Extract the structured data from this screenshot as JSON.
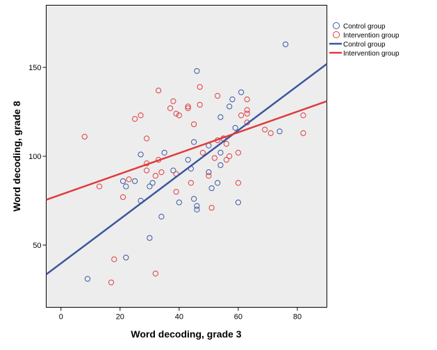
{
  "chart_data": {
    "type": "scatter",
    "title": "",
    "xlabel": "Word decoding, grade 3",
    "ylabel": "Word decoding, grade 8",
    "xlim": [
      -5,
      90
    ],
    "ylim": [
      15,
      185
    ],
    "xticks": [
      0,
      20,
      40,
      60,
      80
    ],
    "yticks": [
      50,
      100,
      150
    ],
    "grid": false,
    "legend_position": "right",
    "plot_background": "#ededed",
    "series": [
      {
        "name": "Control group",
        "marker": "open-circle",
        "color": "#3a55a0",
        "points": [
          [
            9,
            31
          ],
          [
            22,
            43
          ],
          [
            30,
            54
          ],
          [
            34,
            66
          ],
          [
            21,
            86
          ],
          [
            22,
            83
          ],
          [
            25,
            86
          ],
          [
            27,
            75
          ],
          [
            27,
            101
          ],
          [
            30,
            83
          ],
          [
            31,
            85
          ],
          [
            35,
            102
          ],
          [
            38,
            92
          ],
          [
            40,
            74
          ],
          [
            43,
            98
          ],
          [
            44,
            93
          ],
          [
            45,
            108
          ],
          [
            45,
            76
          ],
          [
            46,
            72
          ],
          [
            46,
            70
          ],
          [
            46,
            148
          ],
          [
            50,
            106
          ],
          [
            50,
            91
          ],
          [
            51,
            82
          ],
          [
            53,
            85
          ],
          [
            54,
            95
          ],
          [
            54,
            102
          ],
          [
            54,
            122
          ],
          [
            55,
            110
          ],
          [
            57,
            128
          ],
          [
            58,
            132
          ],
          [
            59,
            116
          ],
          [
            61,
            136
          ],
          [
            60,
            74
          ],
          [
            74,
            114
          ],
          [
            76,
            163
          ]
        ]
      },
      {
        "name": "Intervention group",
        "marker": "open-circle",
        "color": "#e03a3a",
        "points": [
          [
            8,
            111
          ],
          [
            13,
            83
          ],
          [
            17,
            29
          ],
          [
            18,
            42
          ],
          [
            21,
            77
          ],
          [
            23,
            87
          ],
          [
            25,
            121
          ],
          [
            27,
            123
          ],
          [
            29,
            92
          ],
          [
            29,
            96
          ],
          [
            29,
            110
          ],
          [
            32,
            34
          ],
          [
            32,
            89
          ],
          [
            33,
            98
          ],
          [
            33,
            137
          ],
          [
            34,
            91
          ],
          [
            37,
            127
          ],
          [
            38,
            131
          ],
          [
            39,
            124
          ],
          [
            40,
            123
          ],
          [
            39,
            80
          ],
          [
            39,
            90
          ],
          [
            43,
            128
          ],
          [
            43,
            127
          ],
          [
            44,
            85
          ],
          [
            45,
            118
          ],
          [
            47,
            139
          ],
          [
            47,
            129
          ],
          [
            48,
            102
          ],
          [
            50,
            89
          ],
          [
            51,
            71
          ],
          [
            52,
            99
          ],
          [
            53,
            134
          ],
          [
            53,
            109
          ],
          [
            55,
            110
          ],
          [
            56,
            107
          ],
          [
            56,
            98
          ],
          [
            57,
            100
          ],
          [
            60,
            102
          ],
          [
            60,
            85
          ],
          [
            61,
            123
          ],
          [
            63,
            132
          ],
          [
            63,
            124
          ],
          [
            63,
            126
          ],
          [
            63,
            119
          ],
          [
            69,
            115
          ],
          [
            71,
            113
          ],
          [
            82,
            123
          ],
          [
            82,
            113
          ]
        ]
      }
    ],
    "fit_lines": [
      {
        "name": "Control group",
        "color": "#3a55a0",
        "x": [
          -5,
          90
        ],
        "y": [
          33.5,
          152
        ]
      },
      {
        "name": "Intervention group",
        "color": "#e03a3a",
        "x": [
          -5,
          90
        ],
        "y": [
          75.5,
          131
        ]
      }
    ]
  }
}
